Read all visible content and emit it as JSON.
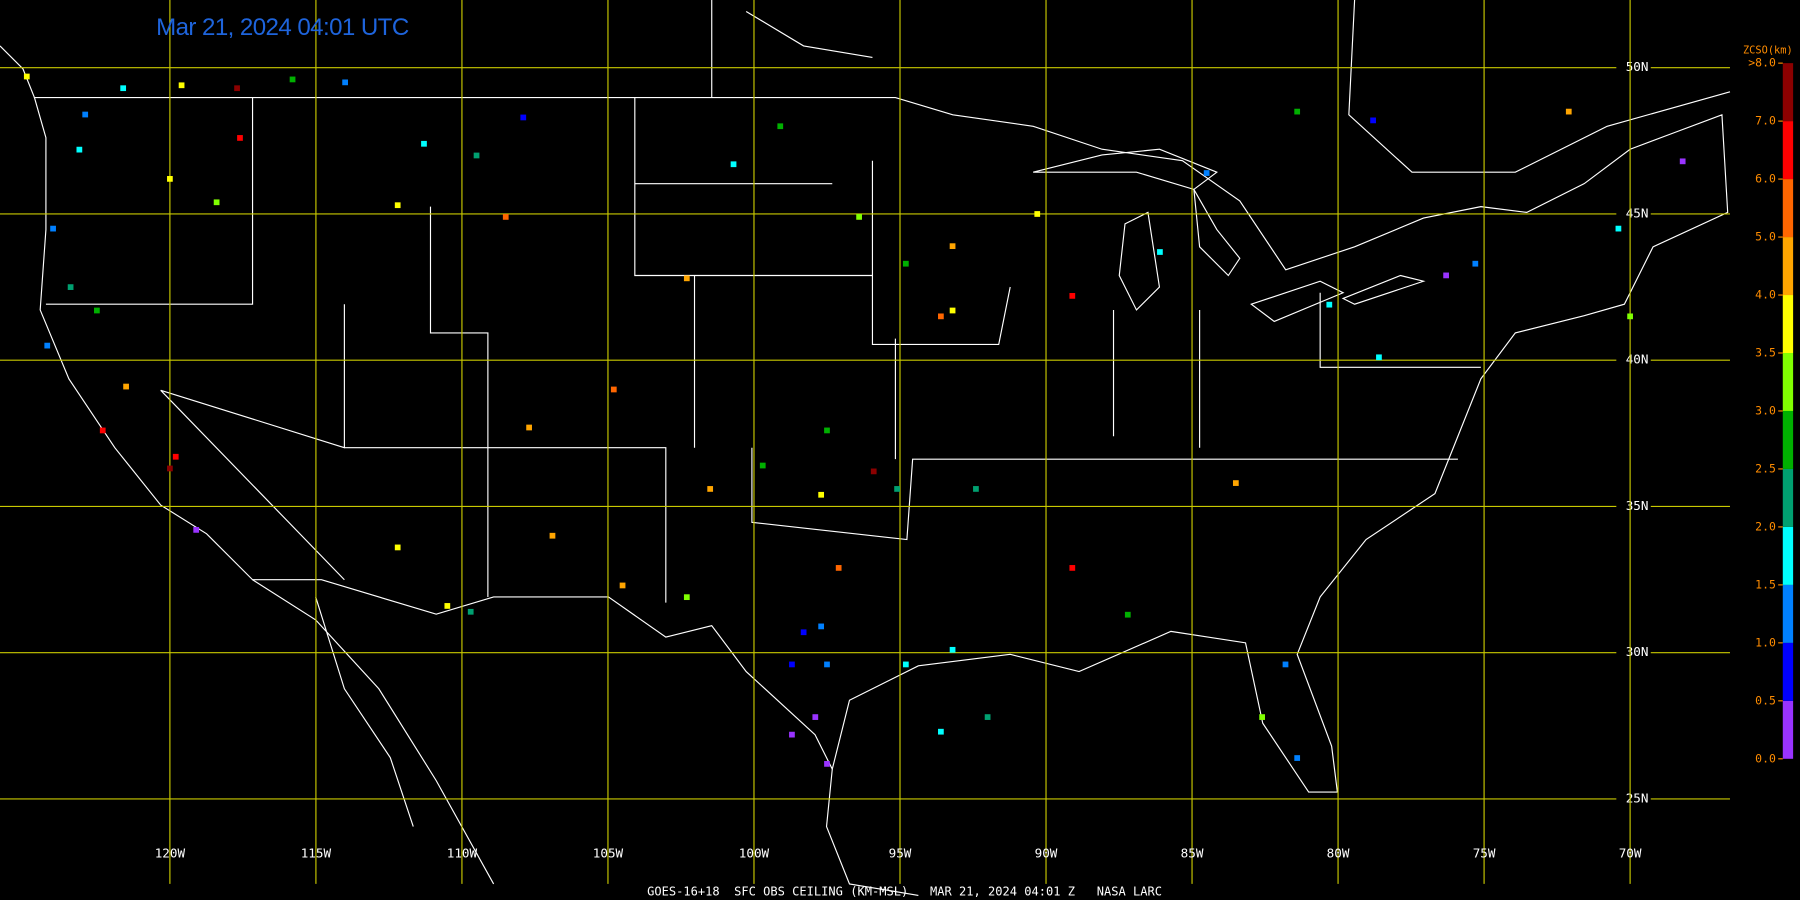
{
  "timestamp": "Mar 21, 2024 04:01 UTC",
  "footer": "GOES-16+18  SFC OBS CEILING (KM-MSL)   MAR 21, 2024 04:01 Z   NASA LARC",
  "grid": {
    "color": "#c8c800",
    "lat": [
      {
        "value": 50,
        "label": "50N"
      },
      {
        "value": 45,
        "label": "45N"
      },
      {
        "value": 40,
        "label": "40N"
      },
      {
        "value": 35,
        "label": "35N"
      },
      {
        "value": 30,
        "label": "30N"
      },
      {
        "value": 25,
        "label": "25N"
      }
    ],
    "lon": [
      {
        "value": -120,
        "label": "120W"
      },
      {
        "value": -115,
        "label": "115W"
      },
      {
        "value": -110,
        "label": "110W"
      },
      {
        "value": -105,
        "label": "105W"
      },
      {
        "value": -100,
        "label": "100W"
      },
      {
        "value": -95,
        "label": "95W"
      },
      {
        "value": -90,
        "label": "90W"
      },
      {
        "value": -85,
        "label": "85W"
      },
      {
        "value": -80,
        "label": "80W"
      },
      {
        "value": -75,
        "label": "75W"
      },
      {
        "value": -70,
        "label": "70W"
      }
    ]
  },
  "legend": {
    "title": "ZCSO(km)",
    "ticks": [
      {
        "value": 0,
        "label": "0.0"
      },
      {
        "value": 0.5,
        "label": "0.5"
      },
      {
        "value": 1,
        "label": "1.0"
      },
      {
        "value": 1.5,
        "label": "1.5"
      },
      {
        "value": 2,
        "label": "2.0"
      },
      {
        "value": 2.5,
        "label": "2.5"
      },
      {
        "value": 3,
        "label": "3.0"
      },
      {
        "value": 3.5,
        "label": "3.5"
      },
      {
        "value": 4,
        "label": "4.0"
      },
      {
        "value": 5,
        "label": "5.0"
      },
      {
        "value": 6,
        "label": "6.0"
      },
      {
        "value": 7,
        "label": "7.0"
      },
      {
        "value": 8,
        "label": ">8.0"
      }
    ],
    "bins": [
      0,
      0.5,
      1,
      1.5,
      2,
      2.5,
      3,
      3.5,
      4,
      5,
      6,
      7,
      8
    ],
    "colors": [
      "#9933ff",
      "#0000ff",
      "#0080ff",
      "#00ffff",
      "#00a070",
      "#00b000",
      "#80ff00",
      "#ffff00",
      "#ffa500",
      "#ff6600",
      "#ff0000",
      "#8b0000"
    ]
  },
  "stations": [
    [
      -124.9,
      49.7,
      3.7
    ],
    [
      -121.6,
      49.3,
      1.8
    ],
    [
      -119.6,
      49.4,
      3.7
    ],
    [
      -117.7,
      49.3,
      7.5
    ],
    [
      -115.8,
      49.6,
      2.7
    ],
    [
      -114.0,
      49.5,
      1.2
    ],
    [
      -123.1,
      47.2,
      1.7
    ],
    [
      -122.9,
      48.4,
      1.2
    ],
    [
      -117.6,
      47.6,
      6.5
    ],
    [
      -120.0,
      46.2,
      3.7
    ],
    [
      -118.4,
      45.4,
      3.2
    ],
    [
      -124.0,
      44.5,
      1.2
    ],
    [
      -123.4,
      42.5,
      2.2
    ],
    [
      -122.5,
      41.7,
      2.7
    ],
    [
      -124.2,
      40.5,
      1.2
    ],
    [
      -121.5,
      39.1,
      4.5
    ],
    [
      -122.3,
      37.6,
      6.5
    ],
    [
      -119.8,
      36.7,
      6.5
    ],
    [
      -119.1,
      34.2,
      0.3
    ],
    [
      -120.0,
      36.3,
      7.5
    ],
    [
      -112.2,
      45.3,
      3.7
    ],
    [
      -111.3,
      47.4,
      1.8
    ],
    [
      -108.5,
      44.9,
      5.5
    ],
    [
      -109.5,
      47.0,
      2.2
    ],
    [
      -107.9,
      48.3,
      0.8
    ],
    [
      -104.8,
      39.0,
      5.5
    ],
    [
      -102.3,
      42.8,
      4.5
    ],
    [
      -100.7,
      46.7,
      1.8
    ],
    [
      -99.1,
      48.0,
      2.7
    ],
    [
      -96.4,
      44.9,
      3.2
    ],
    [
      -93.2,
      43.9,
      4.5
    ],
    [
      -94.8,
      43.3,
      2.7
    ],
    [
      -93.2,
      41.7,
      3.7
    ],
    [
      -93.6,
      41.5,
      5.5
    ],
    [
      -89.1,
      42.2,
      6.5
    ],
    [
      -90.3,
      45.0,
      3.7
    ],
    [
      -86.1,
      43.7,
      1.8
    ],
    [
      -84.5,
      46.4,
      1.2
    ],
    [
      -81.4,
      48.5,
      2.7
    ],
    [
      -78.8,
      48.2,
      0.8
    ],
    [
      -72.1,
      48.5,
      4.5
    ],
    [
      -68.2,
      46.8,
      0.3
    ],
    [
      -70.0,
      41.5,
      3.2
    ],
    [
      -70.4,
      44.5,
      1.8
    ],
    [
      -76.3,
      42.9,
      0.3
    ],
    [
      -78.6,
      40.1,
      1.8
    ],
    [
      -83.5,
      35.8,
      4.5
    ],
    [
      -89.1,
      32.9,
      6.5
    ],
    [
      -87.2,
      31.3,
      2.7
    ],
    [
      -82.6,
      27.8,
      3.2
    ],
    [
      -81.8,
      29.6,
      1.2
    ],
    [
      -81.4,
      26.4,
      1.2
    ],
    [
      -93.6,
      27.3,
      1.8
    ],
    [
      -92.0,
      27.8,
      2.2
    ],
    [
      -94.8,
      29.6,
      1.8
    ],
    [
      -93.2,
      30.1,
      1.7
    ],
    [
      -97.5,
      29.6,
      1.2
    ],
    [
      -98.7,
      29.6,
      0.8
    ],
    [
      -98.3,
      30.7,
      0.8
    ],
    [
      -97.7,
      30.9,
      1.2
    ],
    [
      -97.9,
      27.8,
      0.3
    ],
    [
      -97.5,
      26.2,
      0.3
    ],
    [
      -98.7,
      27.2,
      0.3
    ],
    [
      -97.1,
      32.9,
      5.5
    ],
    [
      -97.7,
      35.4,
      3.7
    ],
    [
      -95.9,
      36.2,
      7.5
    ],
    [
      -99.7,
      36.4,
      2.7
    ],
    [
      -101.5,
      35.6,
      4.5
    ],
    [
      -102.3,
      31.9,
      3.2
    ],
    [
      -104.5,
      32.3,
      4.5
    ],
    [
      -106.9,
      34.0,
      4.5
    ],
    [
      -112.2,
      33.6,
      3.7
    ],
    [
      -110.5,
      31.6,
      3.7
    ],
    [
      -109.7,
      31.4,
      2.2
    ],
    [
      -107.7,
      37.7,
      4.5
    ],
    [
      -97.5,
      37.6,
      2.7
    ],
    [
      -92.4,
      35.6,
      2.2
    ],
    [
      -95.1,
      35.6,
      2.2
    ],
    [
      -80.3,
      41.9,
      1.8
    ],
    [
      -75.3,
      43.3,
      1.2
    ]
  ]
}
